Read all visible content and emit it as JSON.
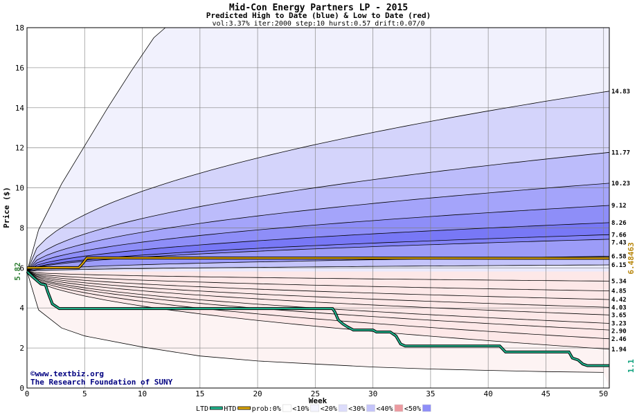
{
  "chart_data": {
    "type": "area",
    "title": "Mid-Con Energy Partners LP - 2015",
    "subtitle": "Predicted High to Date (blue) &  Low to Date (red)",
    "params": "vol:3.37% iter:2000 step:10 hurst:0.57 drift:0.07/0",
    "xlabel": "Week",
    "ylabel": "Price ($)",
    "xlim": [
      0,
      50.5
    ],
    "ylim": [
      0,
      18
    ],
    "x_ticks": [
      0,
      5,
      10,
      15,
      20,
      25,
      30,
      35,
      40,
      45,
      50
    ],
    "y_ticks": [
      0,
      2,
      4,
      6,
      8,
      10,
      12,
      14,
      16,
      18
    ],
    "start_price": 5.82,
    "grid": true,
    "upper_quantiles": [
      {
        "end": 14.83,
        "fill": "#d4d4fb"
      },
      {
        "end": 11.77,
        "fill": "#bcbcfb"
      },
      {
        "end": 10.23,
        "fill": "#a4a4fa"
      },
      {
        "end": 9.12,
        "fill": "#8e8ef8"
      },
      {
        "end": 8.26,
        "fill": "#7878f6"
      },
      {
        "end": 7.66,
        "fill": "#8282f7"
      },
      {
        "end": 7.43,
        "fill": "#9c9cf8"
      },
      {
        "end": 6.58,
        "fill": "#c4c4fa"
      },
      {
        "end": 6.15,
        "fill": "#eaeafd"
      }
    ],
    "lower_quantiles": [
      {
        "end": 5.34,
        "fill": "#fbe0e0"
      },
      {
        "end": 4.85,
        "fill": "#f9c8c8"
      },
      {
        "end": 4.42,
        "fill": "#f7a8a8"
      },
      {
        "end": 4.03,
        "fill": "#f49090"
      },
      {
        "end": 3.65,
        "fill": "#f48a8a"
      },
      {
        "end": 3.23,
        "fill": "#f6a0a0"
      },
      {
        "end": 2.9,
        "fill": "#f8bcbc"
      },
      {
        "end": 2.46,
        "fill": "#fbd8d8"
      },
      {
        "end": 1.94,
        "fill": "#fde8e8"
      }
    ],
    "outer_high": [
      [
        0,
        5.82
      ],
      [
        1,
        7.9
      ],
      [
        3,
        10.2
      ],
      [
        5,
        12.1
      ],
      [
        7,
        14.0
      ],
      [
        9,
        15.8
      ],
      [
        11,
        17.5
      ],
      [
        12,
        18
      ]
    ],
    "outer_low": [
      [
        0,
        5.82
      ],
      [
        1,
        3.9
      ],
      [
        3,
        3.0
      ],
      [
        5,
        2.6
      ],
      [
        10,
        2.05
      ],
      [
        15,
        1.6
      ],
      [
        20,
        1.35
      ],
      [
        25,
        1.2
      ],
      [
        30,
        1.05
      ],
      [
        35,
        0.95
      ],
      [
        40,
        0.88
      ],
      [
        45,
        0.82
      ],
      [
        50,
        0.78
      ]
    ],
    "htd_series": {
      "name": "HTD",
      "color": "#e0a800",
      "final_value": "6.48463",
      "points": [
        [
          0,
          6.0
        ],
        [
          4.5,
          6.02
        ],
        [
          4.8,
          6.2
        ],
        [
          5.2,
          6.5
        ],
        [
          50.5,
          6.48
        ]
      ]
    },
    "ltd_series": {
      "name": "LTD",
      "color": "#22b890",
      "final_value": "1.1",
      "points": [
        [
          0,
          5.82
        ],
        [
          0.5,
          5.55
        ],
        [
          1.2,
          5.2
        ],
        [
          1.6,
          5.15
        ],
        [
          1.8,
          4.8
        ],
        [
          2.2,
          4.2
        ],
        [
          2.8,
          3.97
        ],
        [
          26.5,
          3.97
        ],
        [
          26.7,
          3.8
        ],
        [
          27.0,
          3.4
        ],
        [
          27.4,
          3.2
        ],
        [
          27.8,
          3.05
        ],
        [
          28.3,
          2.9
        ],
        [
          30.0,
          2.9
        ],
        [
          30.3,
          2.8
        ],
        [
          31.5,
          2.8
        ],
        [
          32.0,
          2.6
        ],
        [
          32.4,
          2.2
        ],
        [
          32.8,
          2.1
        ],
        [
          41.0,
          2.1
        ],
        [
          41.5,
          1.8
        ],
        [
          47.0,
          1.8
        ],
        [
          47.3,
          1.5
        ],
        [
          47.8,
          1.4
        ],
        [
          48.2,
          1.2
        ],
        [
          48.6,
          1.12
        ],
        [
          50.5,
          1.12
        ]
      ]
    },
    "legend": [
      {
        "label": "LTD",
        "kind": "line",
        "color": "#22b890"
      },
      {
        "label": "HTD",
        "kind": "line",
        "color": "#e0a800"
      },
      {
        "label": "prob:0%",
        "kind": "box",
        "color": "#ffffff"
      },
      {
        "label": "<10%",
        "kind": "box",
        "color": "#f3f3fd"
      },
      {
        "label": "<20%",
        "kind": "box",
        "color": "#dcdcfb"
      },
      {
        "label": "<30%",
        "kind": "box",
        "color": "#c4c4fa"
      },
      {
        "label": "<40%",
        "kind": "box",
        "color": "#ec9aa0"
      },
      {
        "label": "<50%",
        "kind": "box",
        "color": "#8e8ef8"
      }
    ],
    "watermark": [
      "©www.textbiz.org",
      "The Research Foundation of SUNY"
    ]
  }
}
